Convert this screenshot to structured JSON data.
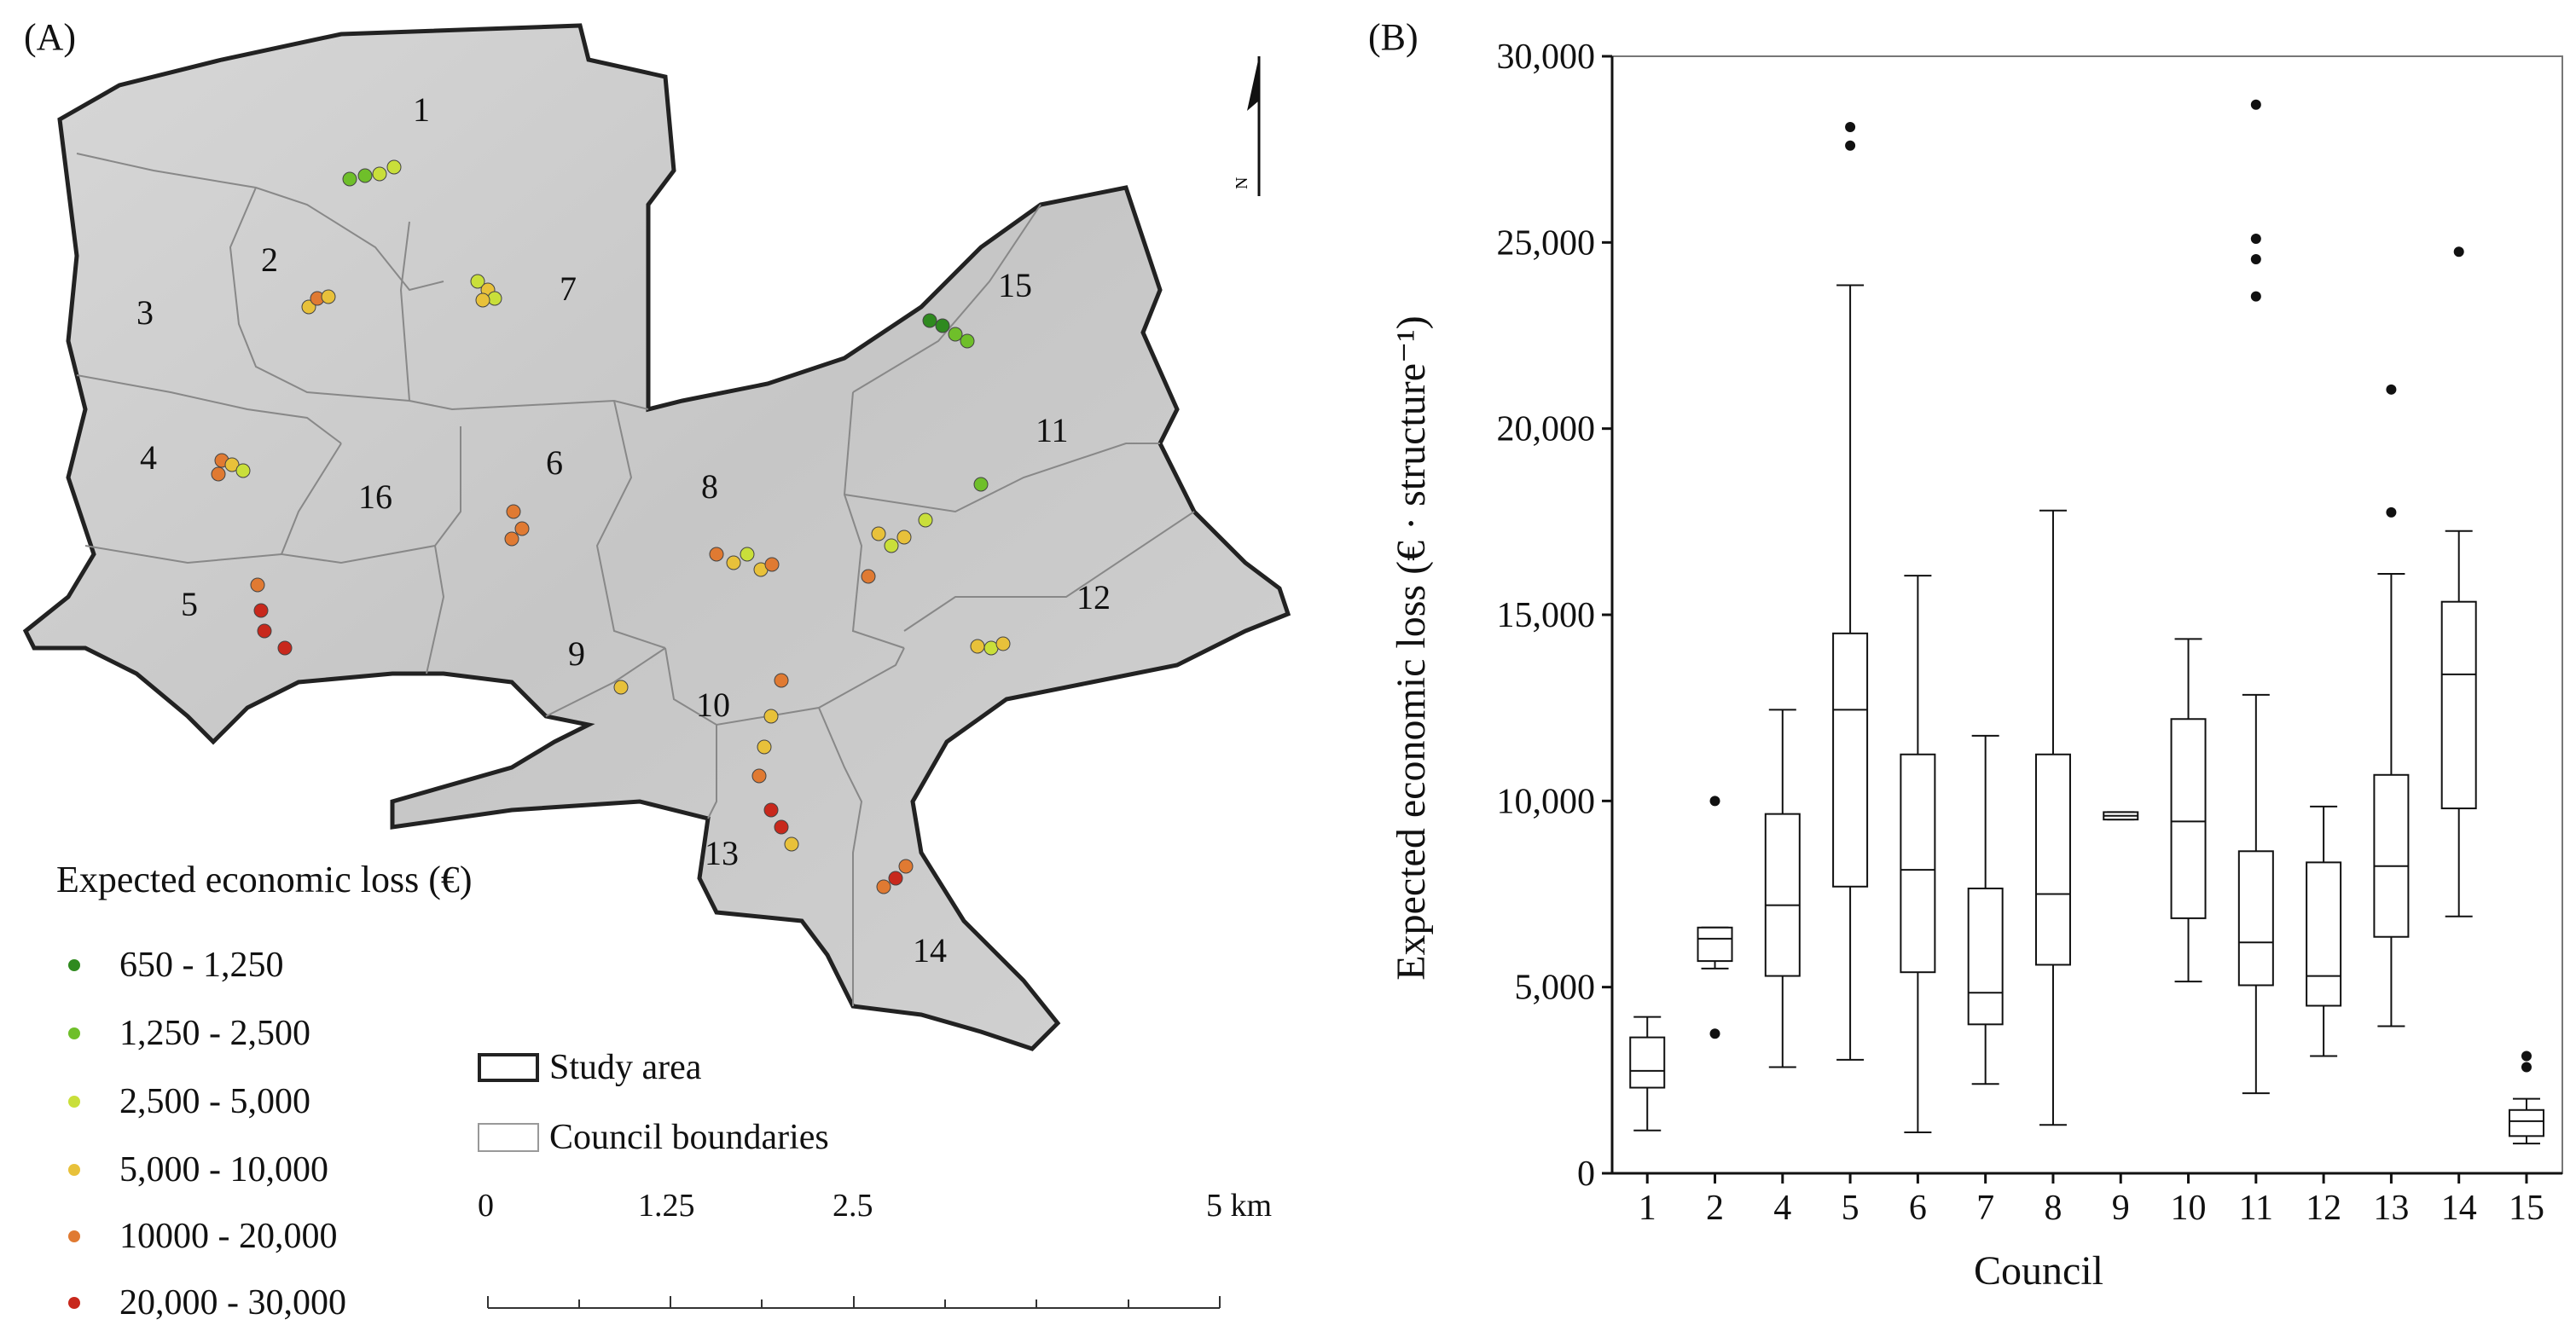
{
  "panel_a": {
    "label": "(A)",
    "council_numbers": [
      "1",
      "2",
      "3",
      "4",
      "5",
      "6",
      "7",
      "8",
      "9",
      "10",
      "11",
      "12",
      "13",
      "14",
      "15",
      "16"
    ],
    "north_label": "N",
    "legend": {
      "title": "Expected economic loss (€)",
      "classes": [
        {
          "label": "650 - 1,250",
          "color": "#2f8a1f"
        },
        {
          "label": "1,250 - 2,500",
          "color": "#6fbf2a"
        },
        {
          "label": "2,500 - 5,000",
          "color": "#c9df3a"
        },
        {
          "label": "5,000 - 10,000",
          "color": "#e8c13a"
        },
        {
          "label": "10000 - 20,000",
          "color": "#e07a32"
        },
        {
          "label": "20,000 - 30,000",
          "color": "#c8281c"
        }
      ]
    },
    "key": {
      "study_area": "Study area",
      "council_boundaries": "Council boundaries"
    },
    "scale_bar": [
      "0",
      "1.25",
      "2.5",
      "5 km"
    ]
  },
  "chart_data": {
    "type": "box",
    "label": "(B)",
    "xlabel": "Council",
    "ylabel": "Expected economic loss (€ · structure⁻¹)",
    "ylim": [
      0,
      30000
    ],
    "yticks": [
      "0",
      "5,000",
      "10,000",
      "15,000",
      "20,000",
      "25,000",
      "30,000"
    ],
    "categories": [
      "1",
      "2",
      "4",
      "5",
      "6",
      "7",
      "8",
      "9",
      "10",
      "11",
      "12",
      "13",
      "14",
      "15"
    ],
    "boxes": [
      {
        "min": 1150,
        "q1": 2300,
        "median": 2750,
        "q3": 3650,
        "max": 4200,
        "outliers": []
      },
      {
        "min": 5500,
        "q1": 5700,
        "median": 6300,
        "q3": 6600,
        "max": 6600,
        "outliers": [
          10000,
          3750
        ]
      },
      {
        "min": 2850,
        "q1": 5300,
        "median": 7200,
        "q3": 9650,
        "max": 12450,
        "outliers": []
      },
      {
        "min": 3050,
        "q1": 7700,
        "median": 12450,
        "q3": 14500,
        "max": 23850,
        "outliers": [
          28100,
          27600
        ]
      },
      {
        "min": 1100,
        "q1": 5400,
        "median": 8150,
        "q3": 11250,
        "max": 16050,
        "outliers": []
      },
      {
        "min": 2400,
        "q1": 4000,
        "median": 4850,
        "q3": 7650,
        "max": 11750,
        "outliers": []
      },
      {
        "min": 1300,
        "q1": 5600,
        "median": 7500,
        "q3": 11250,
        "max": 17800,
        "outliers": []
      },
      {
        "min": 9500,
        "q1": 9500,
        "median": 9600,
        "q3": 9700,
        "max": 9700,
        "outliers": []
      },
      {
        "min": 5150,
        "q1": 6850,
        "median": 9450,
        "q3": 12200,
        "max": 14350,
        "outliers": []
      },
      {
        "min": 2150,
        "q1": 5050,
        "median": 6200,
        "q3": 8650,
        "max": 12850,
        "outliers": [
          28700,
          25100,
          24550,
          23550
        ]
      },
      {
        "min": 3150,
        "q1": 4500,
        "median": 5300,
        "q3": 8350,
        "max": 9850,
        "outliers": []
      },
      {
        "min": 3950,
        "q1": 6350,
        "median": 8250,
        "q3": 10700,
        "max": 16100,
        "outliers": [
          21050,
          17750
        ]
      },
      {
        "min": 6900,
        "q1": 9800,
        "median": 13400,
        "q3": 15350,
        "max": 17250,
        "outliers": [
          24750
        ]
      },
      {
        "min": 800,
        "q1": 1000,
        "median": 1400,
        "q3": 1700,
        "max": 2000,
        "outliers": [
          3150,
          2850
        ]
      }
    ]
  }
}
